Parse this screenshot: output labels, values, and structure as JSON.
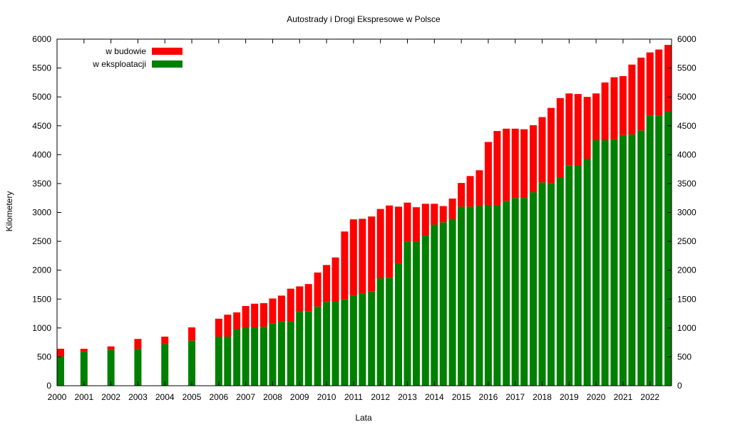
{
  "chart_data": {
    "type": "bar",
    "stacked": true,
    "title": "Autostrady i Drogi Ekspresowe w Polsce",
    "xlabel": "Lata",
    "ylabel": "Kilometery",
    "ylim": [
      0,
      6000
    ],
    "yticks": [
      0,
      500,
      1000,
      1500,
      2000,
      2500,
      3000,
      3500,
      4000,
      4500,
      5000,
      5500,
      6000
    ],
    "right_axis": true,
    "xlim": [
      2000,
      2022.8
    ],
    "xticks": [
      "2000",
      "2001",
      "2002",
      "2003",
      "2004",
      "2005",
      "2006",
      "2007",
      "2008",
      "2009",
      "2010",
      "2011",
      "2012",
      "2013",
      "2014",
      "2015",
      "2016",
      "2017",
      "2018",
      "2019",
      "2020",
      "2021",
      "2022"
    ],
    "legend_position": "top-left",
    "colors": {
      "under_construction": "#ff0000",
      "in_operation": "#008000",
      "axis": "#000000"
    },
    "x": [
      2000,
      2001,
      2002,
      2003,
      2004,
      2005,
      2006,
      2006.33,
      2006.67,
      2007,
      2007.33,
      2007.67,
      2008,
      2008.33,
      2008.67,
      2009,
      2009.33,
      2009.67,
      2010,
      2010.33,
      2010.67,
      2011,
      2011.33,
      2011.67,
      2012,
      2012.33,
      2012.67,
      2013,
      2013.33,
      2013.67,
      2014,
      2014.33,
      2014.67,
      2015,
      2015.33,
      2015.67,
      2016,
      2016.33,
      2016.67,
      2017,
      2017.33,
      2017.67,
      2018,
      2018.33,
      2018.67,
      2019,
      2019.33,
      2019.67,
      2020,
      2020.33,
      2020.67,
      2021,
      2021.33,
      2021.67,
      2022,
      2022.33,
      2022.67
    ],
    "series": [
      {
        "name": "w eksploatacji",
        "color": "#008000",
        "values": [
          510,
          590,
          620,
          640,
          720,
          780,
          850,
          850,
          980,
          1010,
          1010,
          1020,
          1080,
          1110,
          1120,
          1280,
          1290,
          1370,
          1450,
          1460,
          1500,
          1560,
          1590,
          1630,
          1860,
          1870,
          2120,
          2490,
          2490,
          2600,
          2790,
          2830,
          2890,
          3100,
          3100,
          3110,
          3130,
          3130,
          3200,
          3250,
          3250,
          3350,
          3520,
          3510,
          3610,
          3810,
          3820,
          3930,
          4250,
          4250,
          4270,
          4340,
          4350,
          4420,
          4680,
          4680,
          4750
        ]
      },
      {
        "name": "w budowie",
        "color": "#ff0000",
        "values": [
          130,
          50,
          60,
          170,
          130,
          230,
          310,
          380,
          290,
          370,
          410,
          410,
          430,
          450,
          560,
          440,
          470,
          590,
          640,
          760,
          1170,
          1320,
          1300,
          1300,
          1200,
          1250,
          980,
          680,
          600,
          550,
          360,
          280,
          350,
          410,
          530,
          620,
          1090,
          1280,
          1250,
          1200,
          1190,
          1160,
          1130,
          1300,
          1370,
          1250,
          1230,
          1070,
          810,
          1000,
          1070,
          1020,
          1210,
          1260,
          1090,
          1140,
          1150
        ]
      }
    ]
  }
}
